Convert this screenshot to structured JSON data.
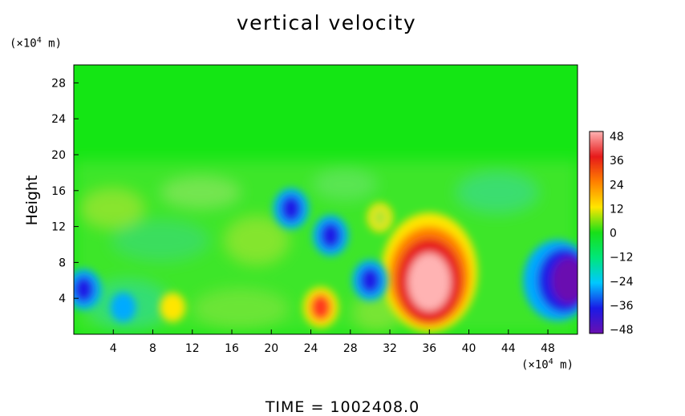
{
  "title": "vertical velocity",
  "ylabel": "Height",
  "unit_y_prefix": "(×10",
  "unit_y_exp": "4",
  "unit_y_suffix": " m)",
  "unit_x_prefix": "(×10",
  "unit_x_exp": "4",
  "unit_x_suffix": " m)",
  "footer": "TIME  =  1002408.0",
  "chart_data": {
    "type": "heatmap",
    "title": "vertical velocity",
    "xlabel": "",
    "ylabel": "Height",
    "x_ticks": [
      4,
      8,
      12,
      16,
      20,
      24,
      28,
      32,
      36,
      40,
      44,
      48
    ],
    "y_ticks": [
      4,
      8,
      12,
      16,
      20,
      24,
      28
    ],
    "xlim": [
      0,
      51
    ],
    "ylim": [
      0,
      30
    ],
    "colorbar": {
      "ticks": [
        48,
        36,
        24,
        12,
        0,
        -12,
        -24,
        -36,
        -48
      ],
      "range": [
        -48,
        48
      ],
      "colors": [
        "#6a0fb0",
        "#1a1ae6",
        "#00c8ff",
        "#00e67a",
        "#18e018",
        "#ffe600",
        "#ff8000",
        "#e61a1a",
        "#ffb3b3"
      ]
    },
    "features": [
      {
        "label": "strong updraft",
        "x": 36,
        "y": 6,
        "value": 48
      },
      {
        "label": "updraft",
        "x": 25,
        "y": 3,
        "value": 36
      },
      {
        "label": "weak updraft",
        "x": 10,
        "y": 3,
        "value": 20
      },
      {
        "label": "weak updraft",
        "x": 31,
        "y": 13,
        "value": 16
      },
      {
        "label": "strong downdraft",
        "x": 49,
        "y": 6,
        "value": -48
      },
      {
        "label": "downdraft",
        "x": 30,
        "y": 6,
        "value": -36
      },
      {
        "label": "downdraft",
        "x": 26,
        "y": 11,
        "value": -30
      },
      {
        "label": "downdraft",
        "x": 22,
        "y": 14,
        "value": -30
      },
      {
        "label": "downdraft",
        "x": 1,
        "y": 5,
        "value": -40
      },
      {
        "label": "weak downdraft",
        "x": 5,
        "y": 3,
        "value": -20
      }
    ]
  }
}
